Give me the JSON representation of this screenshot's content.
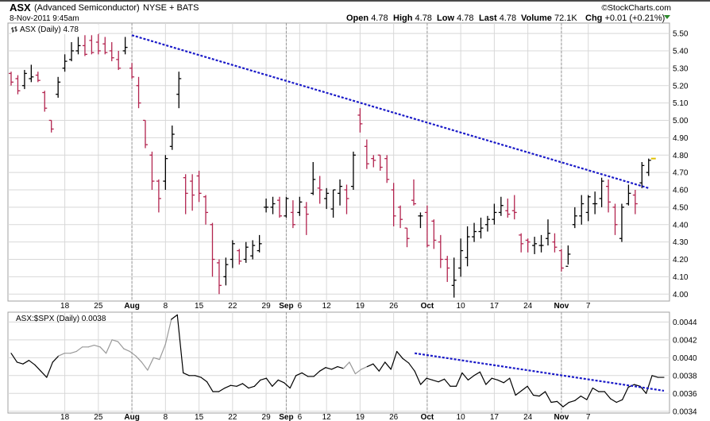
{
  "header": {
    "symbol": "ASX",
    "company": "(Advanced Semiconductor)",
    "exchange": "NYSE + BATS",
    "datetime": "8-Nov-2011 9:45am",
    "watermark": "©StockCharts.com",
    "quote": {
      "open_label": "Open",
      "open": "4.78",
      "high_label": "High",
      "high": "4.78",
      "low_label": "Low",
      "low": "4.78",
      "last_label": "Last",
      "last": "4.78",
      "volume_label": "Volume",
      "volume": "72.1K",
      "chg_label": "Chg",
      "chg": "+0.01 (+0.21%)"
    }
  },
  "colors": {
    "up": "#000000",
    "down": "#b2244f",
    "trend": "#1a1ac8",
    "ratio_line": "#000000",
    "ratio_light": "#999999",
    "grid": "#d8d8d8",
    "last_marker": "#e0c000"
  },
  "chart_data": [
    {
      "type": "ohlc",
      "legend": "ASX (Daily) 4.78",
      "ylim": [
        3.96,
        5.56
      ],
      "yticks": [
        4.0,
        4.1,
        4.2,
        4.3,
        4.4,
        4.5,
        4.6,
        4.7,
        4.8,
        4.9,
        5.0,
        5.1,
        5.2,
        5.3,
        5.4,
        5.5
      ],
      "yticklabels": [
        "4.00",
        "4.10",
        "4.20",
        "4.30",
        "4.40",
        "4.50",
        "4.60",
        "4.70",
        "4.80",
        "4.90",
        "5.00",
        "5.10",
        "5.20",
        "5.30",
        "5.40",
        "5.50"
      ],
      "xtick_labels": [
        {
          "label": "18",
          "bar": 8,
          "month": false
        },
        {
          "label": "25",
          "bar": 13,
          "month": false
        },
        {
          "label": "Aug",
          "bar": 18,
          "month": true
        },
        {
          "label": "8",
          "bar": 23,
          "month": false
        },
        {
          "label": "15",
          "bar": 28,
          "month": false
        },
        {
          "label": "22",
          "bar": 33,
          "month": false
        },
        {
          "label": "29",
          "bar": 38,
          "month": false
        },
        {
          "label": "Sep",
          "bar": 41,
          "month": true
        },
        {
          "label": "6",
          "bar": 43,
          "month": false
        },
        {
          "label": "12",
          "bar": 47,
          "month": false
        },
        {
          "label": "19",
          "bar": 52,
          "month": false
        },
        {
          "label": "26",
          "bar": 57,
          "month": false
        },
        {
          "label": "Oct",
          "bar": 62,
          "month": true
        },
        {
          "label": "10",
          "bar": 67,
          "month": false
        },
        {
          "label": "17",
          "bar": 72,
          "month": false
        },
        {
          "label": "24",
          "bar": 77,
          "month": false
        },
        {
          "label": "Nov",
          "bar": 82,
          "month": true
        },
        {
          "label": "7",
          "bar": 86,
          "month": false
        }
      ],
      "month_lines": [
        18,
        41,
        62,
        82
      ],
      "bars": [
        {
          "o": 5.27,
          "h": 5.28,
          "l": 5.2,
          "c": 5.22
        },
        {
          "o": 5.24,
          "h": 5.26,
          "l": 5.15,
          "c": 5.17
        },
        {
          "o": 5.2,
          "h": 5.29,
          "l": 5.18,
          "c": 5.27
        },
        {
          "o": 5.24,
          "h": 5.32,
          "l": 5.22,
          "c": 5.25
        },
        {
          "o": 5.26,
          "h": 5.28,
          "l": 5.22,
          "c": 5.23
        },
        {
          "o": 5.16,
          "h": 5.17,
          "l": 5.05,
          "c": 5.07
        },
        {
          "o": 5.0,
          "h": 5.0,
          "l": 4.93,
          "c": 4.95
        },
        {
          "o": 5.15,
          "h": 5.25,
          "l": 5.13,
          "c": 5.22
        },
        {
          "o": 5.3,
          "h": 5.38,
          "l": 5.28,
          "c": 5.34
        },
        {
          "o": 5.35,
          "h": 5.45,
          "l": 5.34,
          "c": 5.4
        },
        {
          "o": 5.4,
          "h": 5.48,
          "l": 5.38,
          "c": 5.43
        },
        {
          "o": 5.43,
          "h": 5.49,
          "l": 5.37,
          "c": 5.38
        },
        {
          "o": 5.46,
          "h": 5.49,
          "l": 5.38,
          "c": 5.39
        },
        {
          "o": 5.45,
          "h": 5.5,
          "l": 5.38,
          "c": 5.4
        },
        {
          "o": 5.44,
          "h": 5.48,
          "l": 5.38,
          "c": 5.39
        },
        {
          "o": 5.4,
          "h": 5.45,
          "l": 5.34,
          "c": 5.36
        },
        {
          "o": 5.35,
          "h": 5.4,
          "l": 5.29,
          "c": 5.3
        },
        {
          "o": 5.4,
          "h": 5.48,
          "l": 5.38,
          "c": 5.42
        },
        {
          "o": 5.3,
          "h": 5.33,
          "l": 5.24,
          "c": 5.25
        },
        {
          "o": 5.2,
          "h": 5.25,
          "l": 5.07,
          "c": 5.1
        },
        {
          "o": 5.0,
          "h": 5.0,
          "l": 4.84,
          "c": 4.86
        },
        {
          "o": 4.8,
          "h": 4.82,
          "l": 4.6,
          "c": 4.65
        },
        {
          "o": 4.65,
          "h": 4.66,
          "l": 4.47,
          "c": 4.55
        },
        {
          "o": 4.65,
          "h": 4.8,
          "l": 4.6,
          "c": 4.78
        },
        {
          "o": 4.85,
          "h": 4.97,
          "l": 4.83,
          "c": 4.92
        },
        {
          "o": 5.15,
          "h": 5.28,
          "l": 5.07,
          "c": 5.24
        },
        {
          "o": 4.67,
          "h": 4.69,
          "l": 4.46,
          "c": 4.58
        },
        {
          "o": 4.65,
          "h": 4.69,
          "l": 4.48,
          "c": 4.57
        },
        {
          "o": 4.68,
          "h": 4.71,
          "l": 4.53,
          "c": 4.58
        },
        {
          "o": 4.56,
          "h": 4.57,
          "l": 4.4,
          "c": 4.47
        },
        {
          "o": 4.4,
          "h": 4.41,
          "l": 4.1,
          "c": 4.2
        },
        {
          "o": 4.18,
          "h": 4.2,
          "l": 4.0,
          "c": 4.05
        },
        {
          "o": 4.1,
          "h": 4.21,
          "l": 4.05,
          "c": 4.17
        },
        {
          "o": 4.2,
          "h": 4.31,
          "l": 4.15,
          "c": 4.29
        },
        {
          "o": 4.25,
          "h": 4.26,
          "l": 4.17,
          "c": 4.19
        },
        {
          "o": 4.2,
          "h": 4.3,
          "l": 4.18,
          "c": 4.27
        },
        {
          "o": 4.22,
          "h": 4.31,
          "l": 4.2,
          "c": 4.28
        },
        {
          "o": 4.25,
          "h": 4.34,
          "l": 4.24,
          "c": 4.29
        },
        {
          "o": 4.5,
          "h": 4.55,
          "l": 4.47,
          "c": 4.5
        },
        {
          "o": 4.5,
          "h": 4.56,
          "l": 4.46,
          "c": 4.52
        },
        {
          "o": 4.54,
          "h": 4.56,
          "l": 4.44,
          "c": 4.45
        },
        {
          "o": 4.45,
          "h": 4.56,
          "l": 4.44,
          "c": 4.55
        },
        {
          "o": 4.47,
          "h": 4.54,
          "l": 4.38,
          "c": 4.4
        },
        {
          "o": 4.47,
          "h": 4.56,
          "l": 4.45,
          "c": 4.53
        },
        {
          "o": 4.5,
          "h": 4.53,
          "l": 4.34,
          "c": 4.46
        },
        {
          "o": 4.58,
          "h": 4.76,
          "l": 4.57,
          "c": 4.66
        },
        {
          "o": 4.61,
          "h": 4.68,
          "l": 4.52,
          "c": 4.6
        },
        {
          "o": 4.55,
          "h": 4.61,
          "l": 4.49,
          "c": 4.58
        },
        {
          "o": 4.49,
          "h": 4.6,
          "l": 4.44,
          "c": 4.6
        },
        {
          "o": 4.58,
          "h": 4.66,
          "l": 4.51,
          "c": 4.62
        },
        {
          "o": 4.6,
          "h": 4.63,
          "l": 4.46,
          "c": 4.55
        },
        {
          "o": 4.62,
          "h": 4.82,
          "l": 4.6,
          "c": 4.8
        },
        {
          "o": 5.03,
          "h": 5.07,
          "l": 4.93,
          "c": 4.98
        },
        {
          "o": 4.85,
          "h": 4.89,
          "l": 4.72,
          "c": 4.75
        },
        {
          "o": 4.78,
          "h": 4.8,
          "l": 4.73,
          "c": 4.77
        },
        {
          "o": 4.8,
          "h": 4.8,
          "l": 4.71,
          "c": 4.73
        },
        {
          "o": 4.78,
          "h": 4.8,
          "l": 4.64,
          "c": 4.66
        },
        {
          "o": 4.6,
          "h": 4.64,
          "l": 4.39,
          "c": 4.45
        },
        {
          "o": 4.5,
          "h": 4.51,
          "l": 4.38,
          "c": 4.43
        },
        {
          "o": 4.38,
          "h": 4.38,
          "l": 4.27,
          "c": 4.32
        },
        {
          "o": 4.54,
          "h": 4.66,
          "l": 4.51,
          "c": 4.52
        },
        {
          "o": 4.45,
          "h": 4.47,
          "l": 4.38,
          "c": 4.45
        },
        {
          "o": 4.47,
          "h": 4.51,
          "l": 4.27,
          "c": 4.28
        },
        {
          "o": 4.42,
          "h": 4.43,
          "l": 4.26,
          "c": 4.31
        },
        {
          "o": 4.3,
          "h": 4.34,
          "l": 4.15,
          "c": 4.2
        },
        {
          "o": 4.2,
          "h": 4.22,
          "l": 4.07,
          "c": 4.15
        },
        {
          "o": 4.05,
          "h": 4.21,
          "l": 3.98,
          "c": 4.08
        },
        {
          "o": 4.15,
          "h": 4.32,
          "l": 4.1,
          "c": 4.25
        },
        {
          "o": 4.21,
          "h": 4.39,
          "l": 4.16,
          "c": 4.33
        },
        {
          "o": 4.33,
          "h": 4.41,
          "l": 4.3,
          "c": 4.36
        },
        {
          "o": 4.36,
          "h": 4.44,
          "l": 4.32,
          "c": 4.38
        },
        {
          "o": 4.4,
          "h": 4.45,
          "l": 4.36,
          "c": 4.43
        },
        {
          "o": 4.43,
          "h": 4.52,
          "l": 4.4,
          "c": 4.47
        },
        {
          "o": 4.47,
          "h": 4.56,
          "l": 4.45,
          "c": 4.51
        },
        {
          "o": 4.48,
          "h": 4.55,
          "l": 4.44,
          "c": 4.46
        },
        {
          "o": 4.48,
          "h": 4.57,
          "l": 4.43,
          "c": 4.47
        },
        {
          "o": 4.34,
          "h": 4.35,
          "l": 4.24,
          "c": 4.29
        },
        {
          "o": 4.31,
          "h": 4.32,
          "l": 4.24,
          "c": 4.3
        },
        {
          "o": 4.28,
          "h": 4.33,
          "l": 4.23,
          "c": 4.29
        },
        {
          "o": 4.28,
          "h": 4.34,
          "l": 4.24,
          "c": 4.28
        },
        {
          "o": 4.32,
          "h": 4.43,
          "l": 4.28,
          "c": 4.35
        },
        {
          "o": 4.3,
          "h": 4.35,
          "l": 4.24,
          "c": 4.27
        },
        {
          "o": 4.25,
          "h": 4.26,
          "l": 4.13,
          "c": 4.15
        },
        {
          "o": 4.16,
          "h": 4.28,
          "l": 4.17,
          "c": 4.23
        },
        {
          "o": 4.4,
          "h": 4.5,
          "l": 4.38,
          "c": 4.45
        },
        {
          "o": 4.45,
          "h": 4.57,
          "l": 4.4,
          "c": 4.52
        },
        {
          "o": 4.47,
          "h": 4.57,
          "l": 4.42,
          "c": 4.56
        },
        {
          "o": 4.52,
          "h": 4.59,
          "l": 4.46,
          "c": 4.52
        },
        {
          "o": 4.55,
          "h": 4.67,
          "l": 4.5,
          "c": 4.65
        },
        {
          "o": 4.62,
          "h": 4.66,
          "l": 4.47,
          "c": 4.53
        },
        {
          "o": 4.5,
          "h": 4.52,
          "l": 4.34,
          "c": 4.4
        },
        {
          "o": 4.32,
          "h": 4.52,
          "l": 4.3,
          "c": 4.5
        },
        {
          "o": 4.52,
          "h": 4.63,
          "l": 4.51,
          "c": 4.58
        },
        {
          "o": 4.57,
          "h": 4.6,
          "l": 4.46,
          "c": 4.52
        },
        {
          "o": 4.64,
          "h": 4.76,
          "l": 4.61,
          "c": 4.74
        },
        {
          "o": 4.7,
          "h": 4.78,
          "l": 4.68,
          "c": 4.77
        }
      ],
      "last_close": 4.78,
      "trendline": {
        "from": {
          "bar": 18,
          "value": 5.49
        },
        "to": {
          "bar": 95,
          "value": 4.61
        }
      }
    },
    {
      "type": "line",
      "legend": "ASX:$SPX (Daily) 0.0038",
      "ylim": [
        0.00338,
        0.00451
      ],
      "yticks": [
        0.0034,
        0.0036,
        0.0038,
        0.004,
        0.0042,
        0.0044
      ],
      "yticklabels": [
        "0.0034",
        "0.0036",
        "0.0038",
        "0.0040",
        "0.0042",
        "0.0044"
      ],
      "light_segments": [
        [
          8,
          27
        ],
        [
          56,
          60
        ]
      ],
      "values": [
        0.00405,
        0.00395,
        0.00393,
        0.00397,
        0.00392,
        0.00385,
        0.00378,
        0.00395,
        0.00402,
        0.00405,
        0.00405,
        0.00407,
        0.00412,
        0.00412,
        0.00414,
        0.00412,
        0.00405,
        0.0042,
        0.00418,
        0.0041,
        0.00407,
        0.00402,
        0.00395,
        0.00386,
        0.004,
        0.00398,
        0.00415,
        0.00443,
        0.00448,
        0.00383,
        0.0038,
        0.0038,
        0.00378,
        0.00373,
        0.00362,
        0.00362,
        0.00366,
        0.00369,
        0.00368,
        0.00371,
        0.00366,
        0.00368,
        0.00375,
        0.00377,
        0.00368,
        0.00375,
        0.00372,
        0.00366,
        0.0038,
        0.00383,
        0.00379,
        0.00379,
        0.00385,
        0.00389,
        0.00387,
        0.0039,
        0.00388,
        0.00395,
        0.00382,
        0.00387,
        0.0039,
        0.00393,
        0.00385,
        0.00395,
        0.00387,
        0.00407,
        0.00399,
        0.00394,
        0.00385,
        0.0037,
        0.00377,
        0.00375,
        0.00373,
        0.00376,
        0.00368,
        0.00368,
        0.00383,
        0.00375,
        0.0038,
        0.00384,
        0.0037,
        0.00377,
        0.00375,
        0.00372,
        0.00377,
        0.00358,
        0.00363,
        0.00368,
        0.00358,
        0.00357,
        0.00362,
        0.0035,
        0.00351,
        0.00345,
        0.0035,
        0.00352,
        0.00357,
        0.00353,
        0.00366,
        0.00362,
        0.00362,
        0.00354,
        0.0035,
        0.00353,
        0.00367,
        0.0037,
        0.00368,
        0.0036,
        0.0038,
        0.00378,
        0.00378
      ],
      "trendline": {
        "from": {
          "index": 68,
          "value": 0.00405
        },
        "to": {
          "index": 110,
          "value": 0.00363
        }
      }
    }
  ]
}
